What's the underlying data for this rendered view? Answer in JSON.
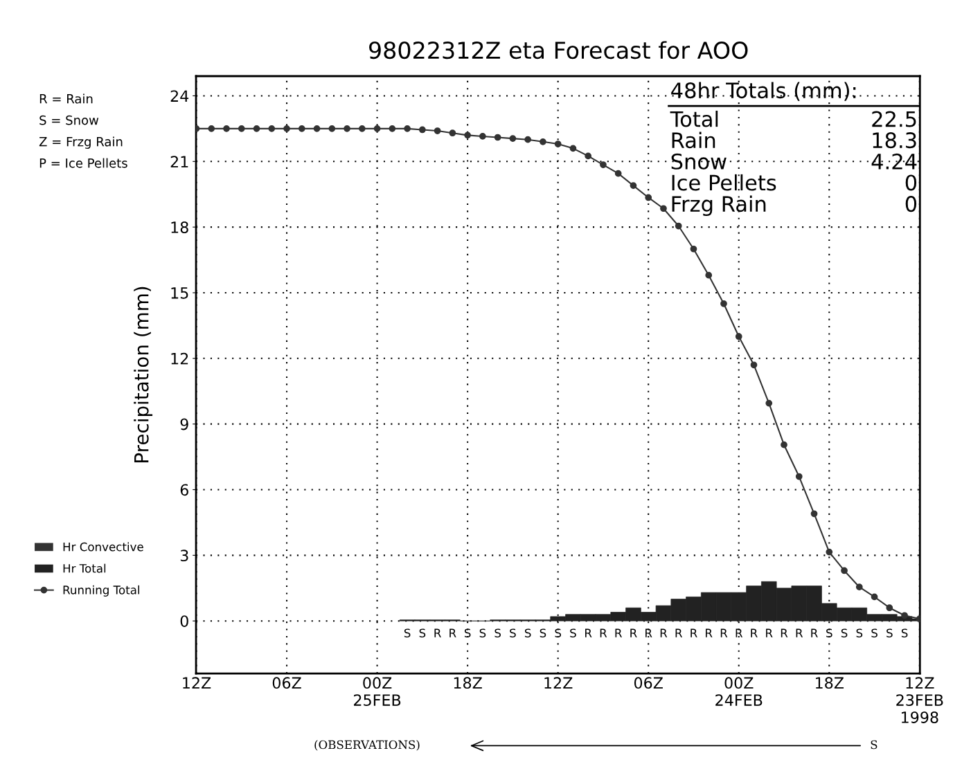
{
  "chart_data": {
    "type": "bar",
    "title": "98022312Z eta Forecast for AOO",
    "ylabel": "Precipitation (mm)",
    "categories": [
      "12Z",
      null,
      null,
      null,
      null,
      null,
      "06Z",
      null,
      null,
      null,
      null,
      null,
      "00Z\n25FEB",
      null,
      null,
      null,
      null,
      null,
      "18Z",
      null,
      null,
      null,
      null,
      null,
      "12Z",
      null,
      null,
      null,
      null,
      null,
      "06Z",
      null,
      null,
      null,
      null,
      null,
      "00Z\n24FEB",
      null,
      null,
      null,
      null,
      null,
      "18Z",
      null,
      null,
      null,
      null,
      null,
      "12Z\n23FEB\n1998"
    ],
    "ylim": [
      -2.4,
      24.9
    ],
    "yticks": [
      0,
      3,
      6,
      9,
      12,
      15,
      18,
      21,
      24
    ],
    "grid": true,
    "legend": "left",
    "marker": "circle",
    "line_style": "solid",
    "series": [
      {
        "name": "Hr Convective",
        "color": "#333333",
        "values": [
          null,
          null,
          null,
          null,
          null,
          null,
          null,
          null,
          null,
          null,
          null,
          null,
          null,
          null,
          null,
          null,
          null,
          null,
          null,
          null,
          null,
          null,
          null,
          null,
          null,
          null,
          null,
          null,
          null,
          null,
          null,
          null,
          null,
          null,
          null,
          null,
          null,
          null,
          null,
          null,
          null,
          null,
          null,
          null,
          null,
          null,
          null,
          null,
          null
        ]
      },
      {
        "name": "Hr Total",
        "color": "#222222",
        "values": [
          null,
          null,
          null,
          null,
          null,
          null,
          null,
          null,
          null,
          null,
          null,
          null,
          null,
          null,
          0.05,
          0.05,
          0.05,
          0.05,
          0,
          0,
          0.05,
          0.05,
          0.05,
          0.05,
          0.2,
          0.3,
          0.3,
          0.3,
          0.4,
          0.6,
          0.4,
          0.7,
          1.0,
          1.1,
          1.3,
          1.3,
          1.3,
          1.6,
          1.8,
          1.5,
          1.6,
          1.6,
          0.8,
          0.6,
          0.6,
          0.3,
          0.3,
          0.2,
          0.1
        ],
        "value_labels": [
          null,
          null,
          null,
          null,
          null,
          null,
          null,
          null,
          null,
          null,
          null,
          null,
          null,
          null,
          "S",
          "S",
          "R",
          "R",
          "S",
          "S",
          "S",
          "S",
          "S",
          "S",
          "S",
          "S",
          "R",
          "R",
          "R",
          "R",
          "R",
          "R",
          "R",
          "R",
          "R",
          "R",
          "R",
          "R",
          "R",
          "R",
          "R",
          "R",
          "S",
          "S",
          "S",
          "S",
          "S",
          "S",
          null
        ]
      },
      {
        "name": "Running Total",
        "type": "line",
        "color": "#333333",
        "values": [
          22.5,
          22.5,
          22.5,
          22.5,
          22.5,
          22.5,
          22.5,
          22.5,
          22.5,
          22.5,
          22.5,
          22.5,
          22.5,
          22.5,
          22.5,
          22.45,
          22.4,
          22.3,
          22.2,
          22.15,
          22.1,
          22.05,
          22.0,
          21.9,
          21.8,
          21.6,
          21.25,
          20.85,
          20.45,
          19.9,
          19.35,
          18.85,
          18.05,
          17.0,
          15.8,
          14.5,
          13.0,
          11.7,
          9.95,
          8.05,
          6.6,
          4.9,
          3.15,
          2.3,
          1.55,
          1.1,
          0.6,
          0.25,
          0.1
        ]
      }
    ],
    "annotations": [
      "R = Rain",
      "S = Snow",
      "Z = Frzg Rain",
      "P = Ice Pellets",
      "48hr Totals (mm):",
      "Total",
      "22.5",
      "Rain",
      "18.3",
      "Snow",
      "4.24",
      "Ice Pellets",
      "0",
      "Frzg Rain",
      "0",
      "(OBSERVATIONS)",
      "S"
    ]
  }
}
